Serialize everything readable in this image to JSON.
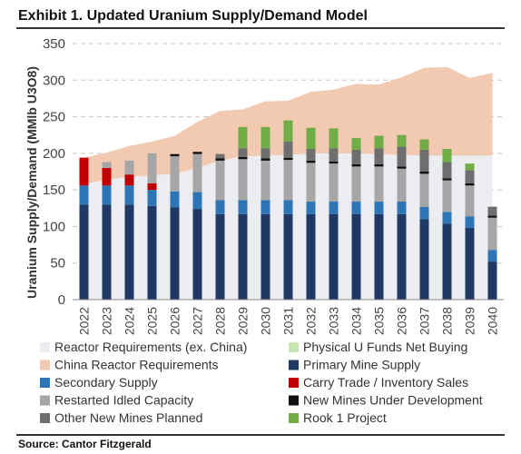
{
  "title": "Exhibit 1. Updated Uranium Supply/Demand Model",
  "source": "Source: Cantor Fitzgerald",
  "chart_data": {
    "type": "bar",
    "stacked": true,
    "ylabel": "Uranium Supply/Demand (MMlb U3O8)",
    "ylim": [
      0,
      350
    ],
    "yticks": [
      0,
      50,
      100,
      150,
      200,
      250,
      300,
      350
    ],
    "grid": true,
    "legend_position": "bottom",
    "categories": [
      "2022",
      "2023",
      "2024",
      "2025",
      "2026",
      "2027",
      "2028",
      "2029",
      "2030",
      "2031",
      "2032",
      "2033",
      "2034",
      "2035",
      "2036",
      "2037",
      "2038",
      "2039",
      "2040"
    ],
    "area_series": [
      {
        "name": "Reactor Requirements (ex. China)",
        "color": "#ecedf1",
        "values": [
          158,
          164,
          168,
          170,
          172,
          180,
          190,
          196,
          197,
          198,
          200,
          200,
          200,
          199,
          198,
          197,
          197,
          197,
          197
        ]
      },
      {
        "name": "China Reactor Requirements",
        "color": "#f2c9b1",
        "values": [
          36,
          37,
          42,
          46,
          52,
          63,
          68,
          64,
          74,
          74,
          84,
          87,
          95,
          95,
          106,
          120,
          121,
          106,
          113
        ]
      }
    ],
    "line_series": [
      {
        "name": "Physical U Funds Net Buying",
        "color": "#c8e6b4",
        "values": [
          null,
          null,
          null,
          null,
          null,
          null,
          null,
          3,
          3,
          4,
          4,
          4,
          4,
          5,
          5,
          5,
          5,
          4,
          4
        ]
      }
    ],
    "bar_series": [
      {
        "name": "Primary Mine Supply",
        "color": "#1f3864",
        "values": [
          130,
          130,
          130,
          128,
          126,
          124,
          117,
          117,
          117,
          117,
          117,
          117,
          117,
          117,
          117,
          110,
          104,
          98,
          52
        ]
      },
      {
        "name": "Secondary Supply",
        "color": "#2e75b6",
        "values": [
          26,
          26,
          26,
          22,
          22,
          23,
          19,
          19,
          19,
          19,
          17,
          17,
          17,
          17,
          17,
          17,
          16,
          16,
          16
        ]
      },
      {
        "name": "Carry Trade / Inventory Sales",
        "color": "#c00000",
        "values": [
          38,
          24,
          15,
          9,
          0,
          0,
          0,
          0,
          0,
          0,
          0,
          0,
          0,
          0,
          0,
          0,
          0,
          0,
          0
        ]
      },
      {
        "name": "Restarted Idled Capacity",
        "color": "#a6a6a6",
        "values": [
          0,
          8,
          19,
          41,
          48,
          52,
          54,
          56,
          54,
          55,
          53,
          52,
          48,
          48,
          45,
          45,
          43,
          42,
          44
        ]
      },
      {
        "name": "New Mines Under Development",
        "color": "#111111",
        "values": [
          0,
          0,
          0,
          0,
          3,
          3,
          3,
          3,
          3,
          3,
          3,
          3,
          3,
          3,
          3,
          3,
          3,
          3,
          3
        ]
      },
      {
        "name": "Other New Mines Planned",
        "color": "#6e6e6e",
        "values": [
          0,
          0,
          0,
          0,
          0,
          0,
          6,
          12,
          14,
          22,
          16,
          18,
          20,
          22,
          27,
          30,
          22,
          18,
          12
        ]
      },
      {
        "name": "Rook 1 Project",
        "color": "#70ad47",
        "values": [
          0,
          0,
          0,
          0,
          0,
          0,
          0,
          29,
          29,
          29,
          29,
          27,
          16,
          17,
          16,
          14,
          18,
          9,
          0
        ]
      }
    ],
    "legend": [
      {
        "label": "Reactor Requirements (ex. China)",
        "color": "#ecedf1"
      },
      {
        "label": "Physical U Funds Net Buying",
        "color": "#c8e6b4"
      },
      {
        "label": "China Reactor Requirements",
        "color": "#f2c9b1"
      },
      {
        "label": "Primary Mine Supply",
        "color": "#1f3864"
      },
      {
        "label": "Secondary Supply",
        "color": "#2e75b6"
      },
      {
        "label": "Carry Trade / Inventory Sales",
        "color": "#c00000"
      },
      {
        "label": "Restarted Idled Capacity",
        "color": "#a6a6a6"
      },
      {
        "label": "New Mines Under Development",
        "color": "#111111"
      },
      {
        "label": "Other New Mines Planned",
        "color": "#6e6e6e"
      },
      {
        "label": "Rook 1 Project",
        "color": "#70ad47"
      }
    ]
  }
}
